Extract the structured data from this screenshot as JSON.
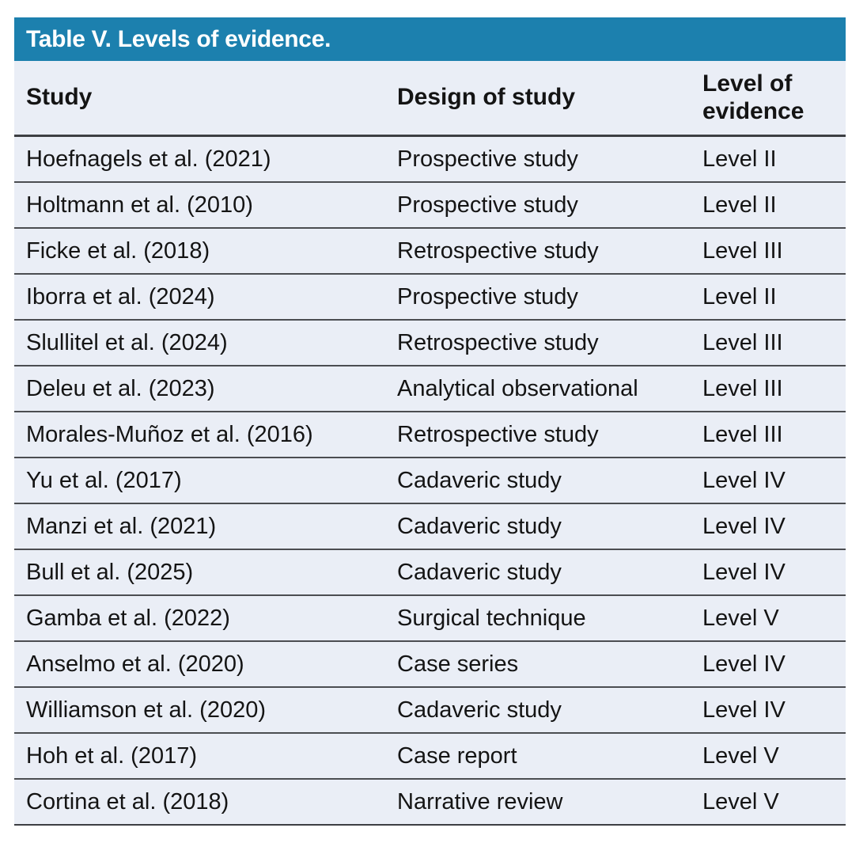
{
  "table": {
    "title": "Table V. Levels of evidence.",
    "columns": {
      "study": "Study",
      "design": "Design of study",
      "level": "Level of evidence"
    },
    "rows": [
      {
        "study": "Hoefnagels et al. (2021)",
        "design": "Prospective study",
        "level": "Level II"
      },
      {
        "study": "Holtmann et al. (2010)",
        "design": "Prospective study",
        "level": "Level II"
      },
      {
        "study": "Ficke et al. (2018)",
        "design": "Retrospective study",
        "level": "Level III"
      },
      {
        "study": "Iborra et al. (2024)",
        "design": "Prospective study",
        "level": "Level II"
      },
      {
        "study": "Slullitel et al. (2024)",
        "design": "Retrospective study",
        "level": "Level III"
      },
      {
        "study": "Deleu et al. (2023)",
        "design": "Analytical observational",
        "level": "Level III"
      },
      {
        "study": "Morales-Muñoz et al. (2016)",
        "design": "Retrospective study",
        "level": "Level III"
      },
      {
        "study": "Yu et al. (2017)",
        "design": "Cadaveric study",
        "level": "Level IV"
      },
      {
        "study": "Manzi et al. (2021)",
        "design": "Cadaveric study",
        "level": "Level IV"
      },
      {
        "study": "Bull et al. (2025)",
        "design": "Cadaveric study",
        "level": "Level IV"
      },
      {
        "study": "Gamba et al. (2022)",
        "design": "Surgical technique",
        "level": "Level V"
      },
      {
        "study": "Anselmo et al. (2020)",
        "design": "Case series",
        "level": "Level IV"
      },
      {
        "study": "Williamson et al. (2020)",
        "design": "Cadaveric study",
        "level": "Level IV"
      },
      {
        "study": "Hoh et al. (2017)",
        "design": "Case report",
        "level": "Level V"
      },
      {
        "study": "Cortina et al. (2018)",
        "design": "Narrative review",
        "level": "Level V"
      }
    ]
  },
  "colors": {
    "header_bg": "#1c80ae",
    "body_bg": "#eaeef6",
    "divider": "#4b4d51",
    "text": "#141414",
    "title_text": "#ffffff"
  }
}
